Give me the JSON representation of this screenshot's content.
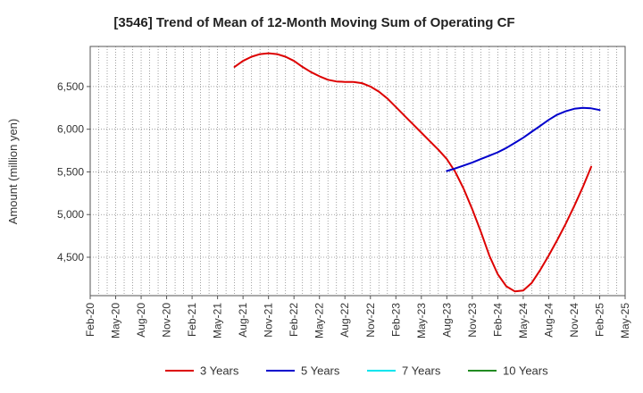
{
  "chart_data": {
    "type": "line",
    "title": "[3546]  Trend of Mean of 12-Month Moving Sum of Operating CF",
    "xlabel": "",
    "ylabel": "Amount (million yen)",
    "ylim": [
      4050,
      6970
    ],
    "yticks": [
      4500,
      5000,
      5500,
      6000,
      6500
    ],
    "ytick_labels": [
      "4,500",
      "5,000",
      "5,500",
      "6,000",
      "6,500"
    ],
    "x_start": "2020-02",
    "x_end": "2025-05",
    "x_tick_labels": [
      "Feb-20",
      "May-20",
      "Aug-20",
      "Nov-20",
      "Feb-21",
      "May-21",
      "Aug-21",
      "Nov-21",
      "Feb-22",
      "May-22",
      "Aug-22",
      "Nov-22",
      "Feb-23",
      "May-23",
      "Aug-23",
      "Nov-23",
      "Feb-24",
      "May-24",
      "Aug-24",
      "Nov-24",
      "Feb-25",
      "May-25"
    ],
    "grid": true,
    "legend_position": "bottom",
    "series": [
      {
        "name": "3 Years",
        "color": "#dd0000",
        "points": [
          [
            "2021-07",
            6730
          ],
          [
            "2021-08",
            6800
          ],
          [
            "2021-09",
            6850
          ],
          [
            "2021-10",
            6880
          ],
          [
            "2021-11",
            6890
          ],
          [
            "2021-12",
            6880
          ],
          [
            "2022-01",
            6850
          ],
          [
            "2022-02",
            6800
          ],
          [
            "2022-03",
            6730
          ],
          [
            "2022-04",
            6670
          ],
          [
            "2022-05",
            6620
          ],
          [
            "2022-06",
            6580
          ],
          [
            "2022-07",
            6560
          ],
          [
            "2022-08",
            6555
          ],
          [
            "2022-09",
            6555
          ],
          [
            "2022-10",
            6540
          ],
          [
            "2022-11",
            6500
          ],
          [
            "2022-12",
            6440
          ],
          [
            "2023-01",
            6360
          ],
          [
            "2023-02",
            6260
          ],
          [
            "2023-03",
            6160
          ],
          [
            "2023-04",
            6060
          ],
          [
            "2023-05",
            5960
          ],
          [
            "2023-06",
            5860
          ],
          [
            "2023-07",
            5760
          ],
          [
            "2023-08",
            5650
          ],
          [
            "2023-09",
            5500
          ],
          [
            "2023-10",
            5300
          ],
          [
            "2023-11",
            5060
          ],
          [
            "2023-12",
            4800
          ],
          [
            "2024-01",
            4520
          ],
          [
            "2024-02",
            4300
          ],
          [
            "2024-03",
            4160
          ],
          [
            "2024-04",
            4100
          ],
          [
            "2024-05",
            4110
          ],
          [
            "2024-06",
            4200
          ],
          [
            "2024-07",
            4350
          ],
          [
            "2024-08",
            4520
          ],
          [
            "2024-09",
            4700
          ],
          [
            "2024-10",
            4890
          ],
          [
            "2024-11",
            5100
          ],
          [
            "2024-12",
            5320
          ],
          [
            "2025-01",
            5560
          ]
        ]
      },
      {
        "name": "5 Years",
        "color": "#0000cc",
        "points": [
          [
            "2023-08",
            5510
          ],
          [
            "2023-09",
            5540
          ],
          [
            "2023-10",
            5575
          ],
          [
            "2023-11",
            5610
          ],
          [
            "2023-12",
            5650
          ],
          [
            "2024-01",
            5690
          ],
          [
            "2024-02",
            5730
          ],
          [
            "2024-03",
            5780
          ],
          [
            "2024-04",
            5840
          ],
          [
            "2024-05",
            5900
          ],
          [
            "2024-06",
            5970
          ],
          [
            "2024-07",
            6040
          ],
          [
            "2024-08",
            6110
          ],
          [
            "2024-09",
            6170
          ],
          [
            "2024-10",
            6210
          ],
          [
            "2024-11",
            6240
          ],
          [
            "2024-12",
            6250
          ],
          [
            "2025-01",
            6245
          ],
          [
            "2025-02",
            6225
          ]
        ]
      },
      {
        "name": "7 Years",
        "color": "#00e5ee",
        "points": []
      },
      {
        "name": "10 Years",
        "color": "#228b22",
        "points": []
      }
    ]
  }
}
